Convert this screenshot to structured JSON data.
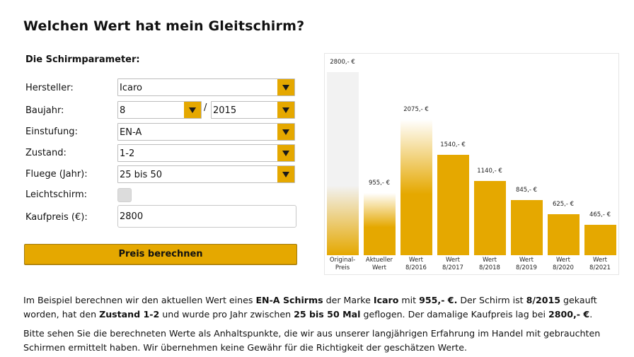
{
  "page": {
    "title": "Welchen Wert hat mein Gleitschirm?"
  },
  "form": {
    "heading": "Die Schirmparameter:",
    "manufacturer": {
      "label": "Hersteller:",
      "value": "Icaro"
    },
    "year": {
      "label": "Baujahr:",
      "month_value": "8",
      "separator": "/",
      "year_value": "2015"
    },
    "classification": {
      "label": "Einstufung:",
      "value": "EN-A"
    },
    "condition": {
      "label": "Zustand:",
      "value": "1-2"
    },
    "flights": {
      "label": "Fluege (Jahr):",
      "value": "25 bis 50"
    },
    "lightweight": {
      "label": "Leichtschirm:",
      "checked": false
    },
    "price": {
      "label": "Kaufpreis (€):",
      "value": "2800"
    },
    "submit_label": "Preis berechnen"
  },
  "colors": {
    "accent": "#e5a800",
    "original_bar": "#f2f2f2"
  },
  "chart_data": {
    "type": "bar",
    "categories": [
      "Original-\nPreis",
      "Aktueller\nWert",
      "Wert\n8/2016",
      "Wert\n8/2017",
      "Wert\n8/2018",
      "Wert\n8/2019",
      "Wert\n8/2020",
      "Wert\n8/2021"
    ],
    "values": [
      2800,
      955,
      2075,
      1540,
      1140,
      845,
      625,
      465
    ],
    "value_labels": [
      "2800,- €",
      "955,- €",
      "2075,- €",
      "1540,- €",
      "1140,- €",
      "845,- €",
      "625,- €",
      "465,- €"
    ],
    "styles": [
      "original",
      "gradient",
      "gradient",
      "solid",
      "solid",
      "solid",
      "solid",
      "solid"
    ],
    "ylim": [
      0,
      2800
    ]
  },
  "text": {
    "p1": {
      "t1": "Im Beispiel berechnen wir den aktuellen Wert eines ",
      "b1": "EN-A Schirms",
      "t2": " der Marke ",
      "b2": "Icaro",
      "t3": " mit ",
      "b3": "955,- €.",
      "t4": " Der Schirm ist ",
      "b4": "8/2015",
      "t5": " gekauft worden, hat den ",
      "b5": "Zustand 1-2",
      "t6": " und wurde pro Jahr zwischen ",
      "b6": "25 bis 50 Mal",
      "t7": " geflogen. Der damalige Kaufpreis lag bei ",
      "b7": "2800,- €",
      "t8": "."
    },
    "p2": "Bitte sehen Sie die berechneten Werte als Anhaltspunkte, die wir aus unserer langjährigen Erfahrung im Handel mit gebrauchten Schirmen ermittelt haben. Wir übernehmen keine Gewähr für die Richtigkeit der geschätzen Werte."
  }
}
